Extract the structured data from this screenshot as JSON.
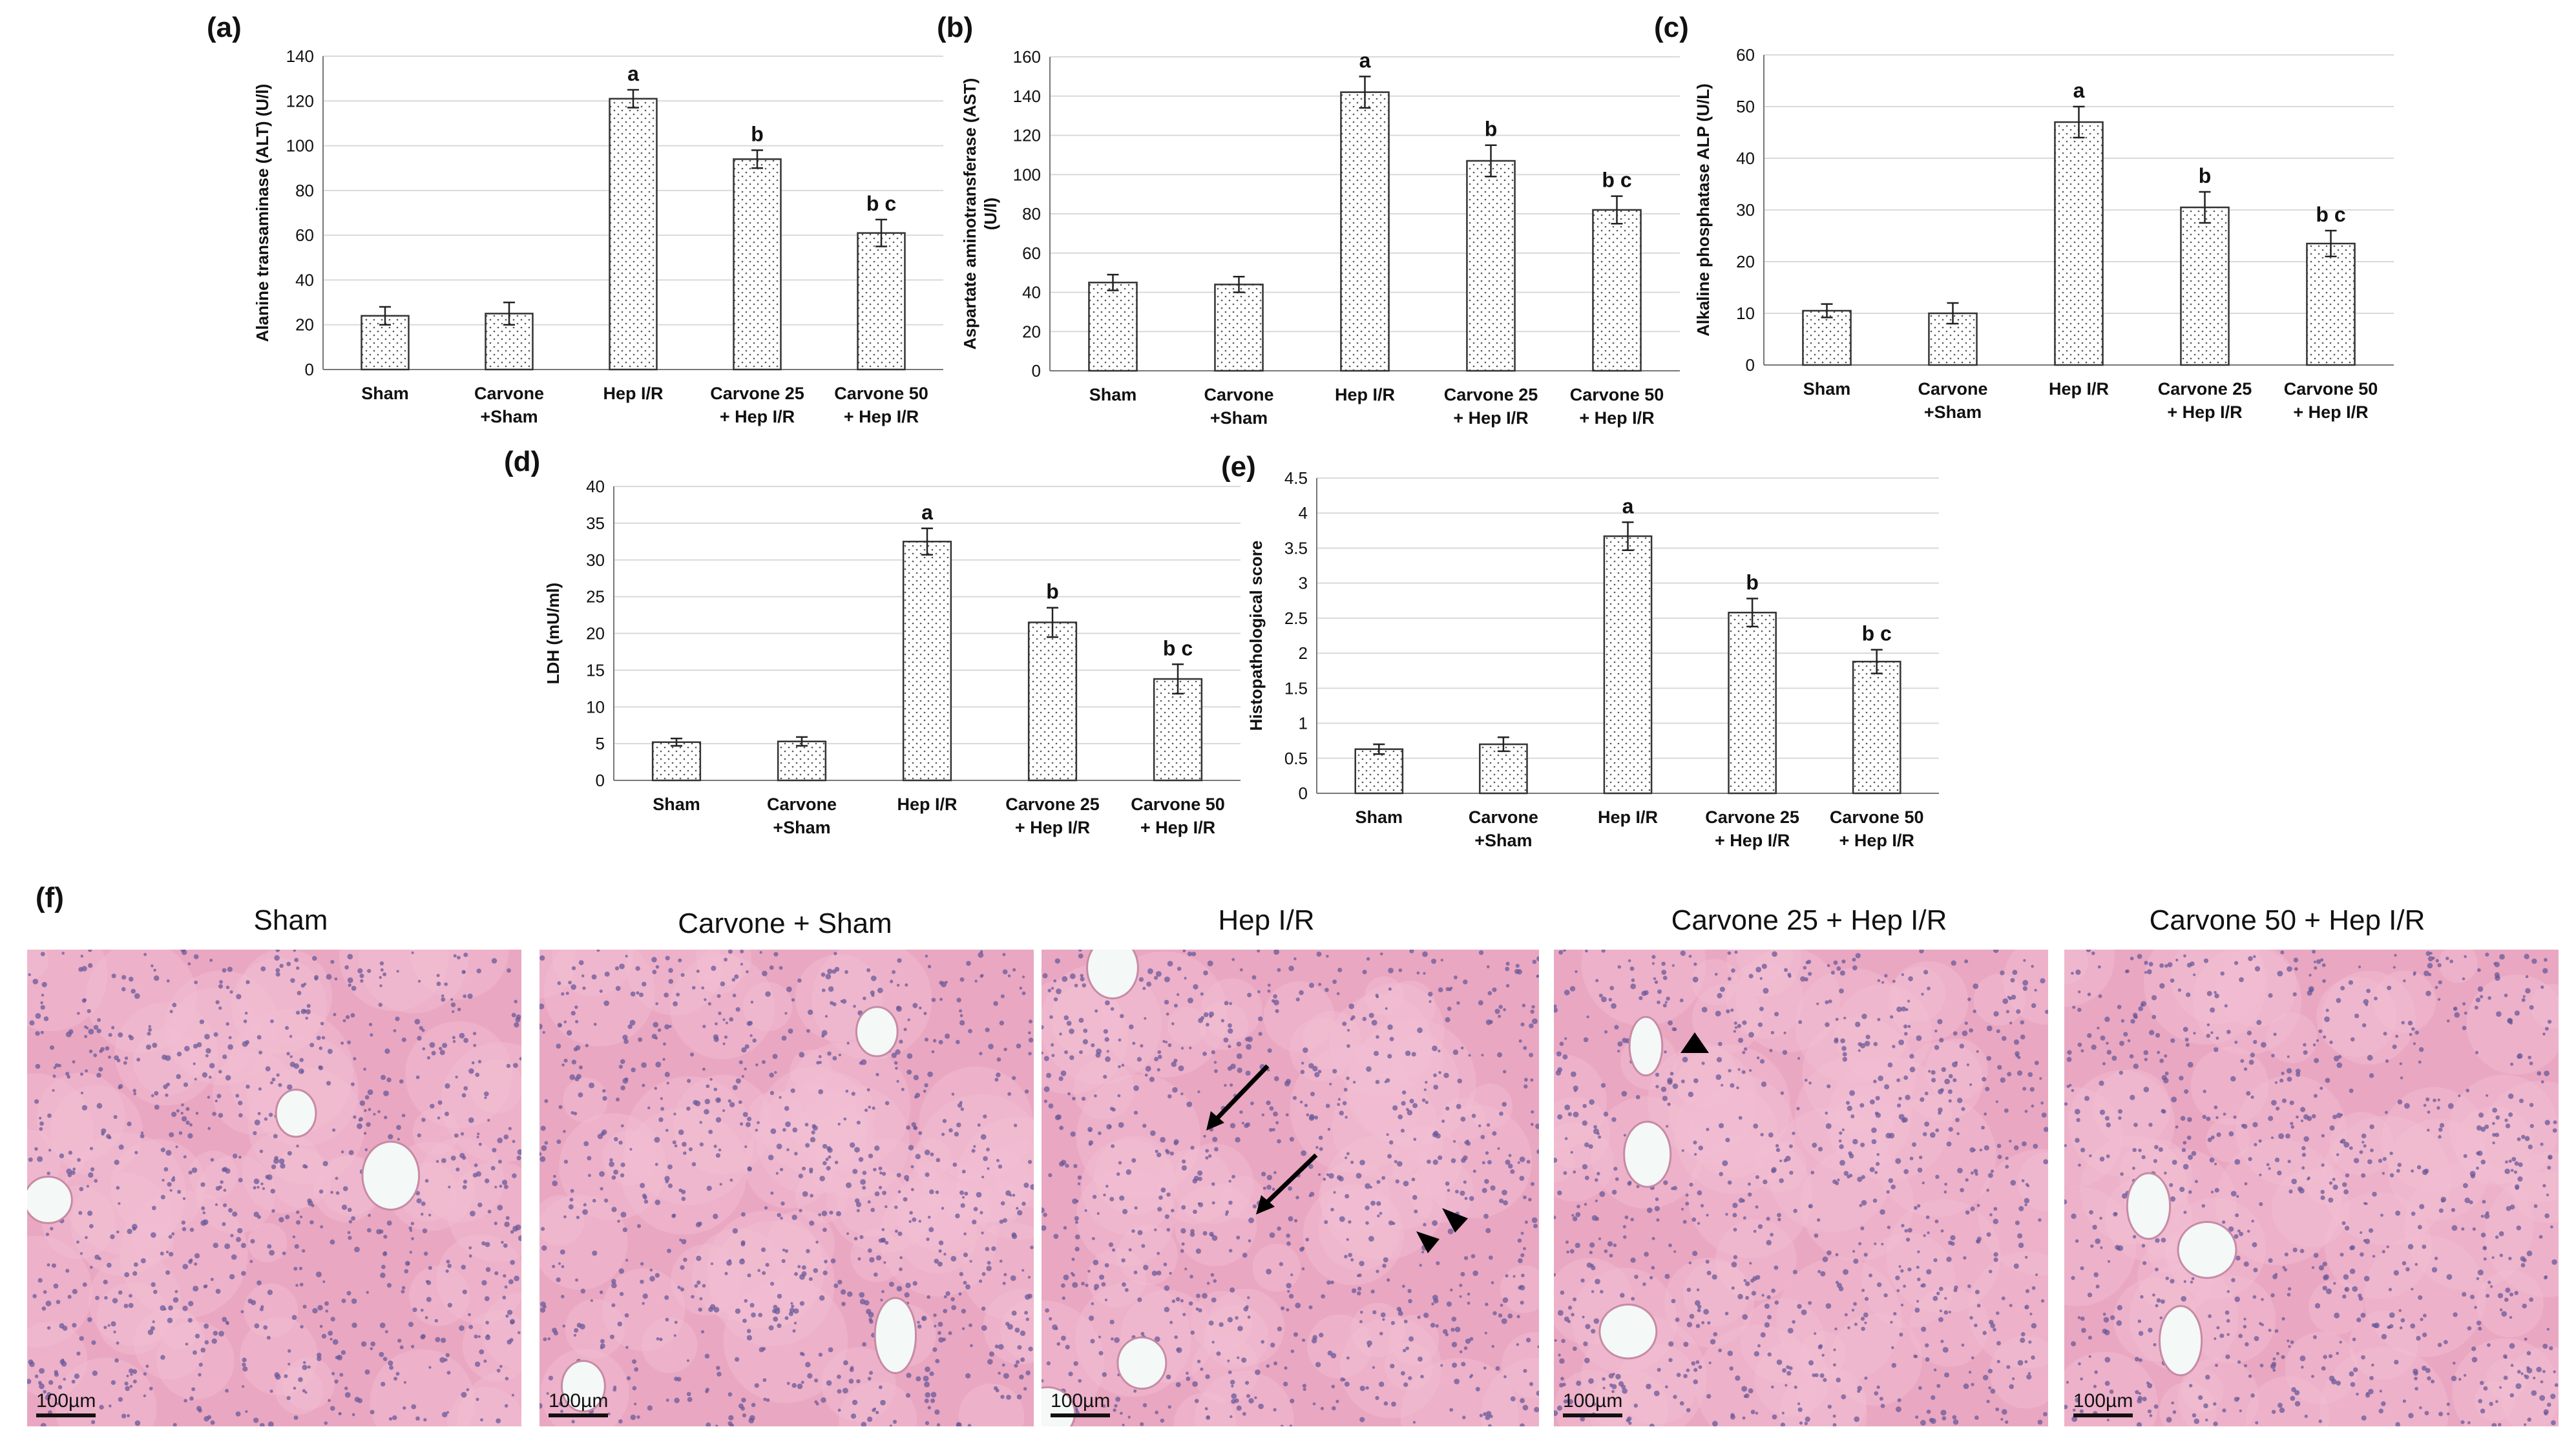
{
  "chart_data": [
    {
      "panel": "(a)",
      "type": "bar",
      "ylabel": "Alanine transaminase (ALT) (U/l)",
      "ylim": [
        0,
        140
      ],
      "yticks": [
        0,
        20,
        40,
        60,
        80,
        100,
        120,
        140
      ],
      "categories": [
        [
          "Sham"
        ],
        [
          "Carvone",
          "+Sham"
        ],
        [
          "Hep I/R"
        ],
        [
          "Carvone 25",
          "+ Hep I/R"
        ],
        [
          "Carvone 50",
          "+ Hep I/R"
        ]
      ],
      "values": [
        24,
        25,
        121,
        94,
        61
      ],
      "errors": [
        4,
        5,
        4,
        4,
        6
      ],
      "sig": [
        "",
        "",
        "a",
        "b",
        "b c"
      ],
      "grid": true
    },
    {
      "panel": "(b)",
      "type": "bar",
      "ylabel": [
        "Aspartate aminotransferase (AST)",
        "(U/l)"
      ],
      "ylim": [
        0,
        160
      ],
      "yticks": [
        0,
        20,
        40,
        60,
        80,
        100,
        120,
        140,
        160
      ],
      "categories": [
        [
          "Sham"
        ],
        [
          "Carvone",
          "+Sham"
        ],
        [
          "Hep I/R"
        ],
        [
          "Carvone 25",
          "+ Hep I/R"
        ],
        [
          "Carvone 50",
          "+ Hep I/R"
        ]
      ],
      "values": [
        45,
        44,
        142,
        107,
        82
      ],
      "errors": [
        4,
        4,
        8,
        8,
        7
      ],
      "sig": [
        "",
        "",
        "a",
        "b",
        "b c"
      ],
      "grid": true
    },
    {
      "panel": "(c)",
      "type": "bar",
      "ylabel": "Alkaline phosphatase ALP (U/L)",
      "ylim": [
        0,
        60
      ],
      "yticks": [
        0,
        10,
        20,
        30,
        40,
        50,
        60
      ],
      "categories": [
        [
          "Sham"
        ],
        [
          "Carvone",
          "+Sham"
        ],
        [
          "Hep I/R"
        ],
        [
          "Carvone 25",
          "+ Hep I/R"
        ],
        [
          "Carvone 50",
          "+ Hep I/R"
        ]
      ],
      "values": [
        10.5,
        10,
        47,
        30.5,
        23.5
      ],
      "errors": [
        1.3,
        2,
        3,
        3,
        2.5
      ],
      "sig": [
        "",
        "",
        "a",
        "b",
        "b c"
      ],
      "grid": true
    },
    {
      "panel": "(d)",
      "type": "bar",
      "ylabel": "LDH (mU/ml)",
      "ylim": [
        0,
        40
      ],
      "yticks": [
        0,
        5,
        10,
        15,
        20,
        25,
        30,
        35,
        40
      ],
      "categories": [
        [
          "Sham"
        ],
        [
          "Carvone",
          "+Sham"
        ],
        [
          "Hep I/R"
        ],
        [
          "Carvone 25",
          "+ Hep I/R"
        ],
        [
          "Carvone 50",
          "+ Hep I/R"
        ]
      ],
      "values": [
        5.2,
        5.3,
        32.5,
        21.5,
        13.8
      ],
      "errors": [
        0.5,
        0.6,
        1.8,
        2,
        2
      ],
      "sig": [
        "",
        "",
        "a",
        "b",
        "b c"
      ],
      "grid": true
    },
    {
      "panel": "(e)",
      "type": "bar",
      "ylabel": "Histopathological score",
      "ylim": [
        0,
        4.5
      ],
      "yticks": [
        0,
        0.5,
        1,
        1.5,
        2,
        2.5,
        3,
        3.5,
        4,
        4.5
      ],
      "categories": [
        [
          "Sham"
        ],
        [
          "Carvone",
          "+Sham"
        ],
        [
          "Hep I/R"
        ],
        [
          "Carvone 25",
          "+ Hep I/R"
        ],
        [
          "Carvone 50",
          "+ Hep I/R"
        ]
      ],
      "values": [
        0.63,
        0.7,
        3.67,
        2.58,
        1.88
      ],
      "errors": [
        0.07,
        0.1,
        0.2,
        0.2,
        0.17
      ],
      "sig": [
        "",
        "",
        "a",
        "b",
        "b c"
      ],
      "grid": true
    }
  ],
  "histology": {
    "panel": "(f)",
    "titles": [
      "Sham",
      "Carvone + Sham",
      "Hep I/R",
      "Carvone 25 + Hep I/R",
      "Carvone 50 + Hep I/R"
    ],
    "scale_label": "100µm"
  },
  "colors": {
    "bar_fill": "#ffffff",
    "bar_dots": "#555555",
    "grid": "#d9d9d9",
    "tissue": "#e9a7c1",
    "nuclei": "#6a5a9a"
  }
}
